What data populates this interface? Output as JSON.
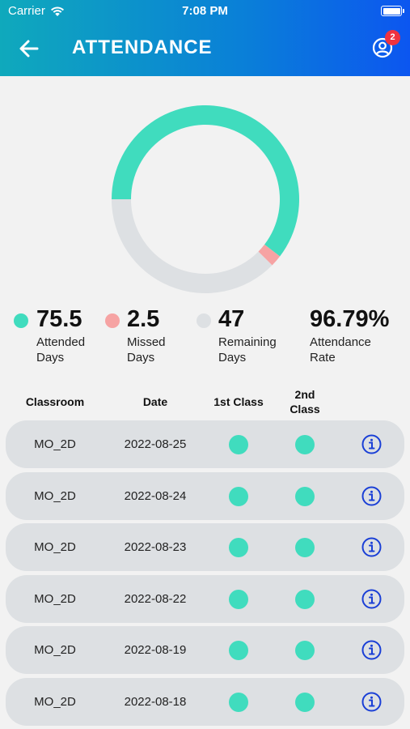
{
  "status_bar": {
    "carrier": "Carrier",
    "time": "7:08 PM"
  },
  "header": {
    "title": "ATTENDANCE",
    "notification_count": "2",
    "color_start": "#0fa9bc",
    "color_end": "#0c56f0"
  },
  "chart_data": {
    "type": "pie",
    "style": "donut",
    "categories": [
      "Attended Days",
      "Missed Days",
      "Remaining Days"
    ],
    "values": [
      75.5,
      2.5,
      47
    ],
    "colors": [
      "#40dcbe",
      "#f6a3a3",
      "#dde0e3"
    ]
  },
  "stats": [
    {
      "value": "75.5",
      "label_line1": "Attended",
      "label_line2": "Days",
      "color": "#40dcbe"
    },
    {
      "value": "2.5",
      "label_line1": "Missed",
      "label_line2": "Days",
      "color": "#f6a3a3"
    },
    {
      "value": "47",
      "label_line1": "Remaining",
      "label_line2": "Days",
      "color": "#dde0e3"
    },
    {
      "value": "96.79%",
      "label_line1": "Attendance",
      "label_line2": "Rate"
    }
  ],
  "table": {
    "headers": {
      "classroom": "Classroom",
      "date": "Date",
      "first_class": "1st Class",
      "second_class_line1": "2nd",
      "second_class_line2": "Class"
    },
    "present_color": "#40dcbe",
    "rows": [
      {
        "classroom": "MO_2D",
        "date": "2022-08-25",
        "first_class": "present",
        "second_class": "present"
      },
      {
        "classroom": "MO_2D",
        "date": "2022-08-24",
        "first_class": "present",
        "second_class": "present"
      },
      {
        "classroom": "MO_2D",
        "date": "2022-08-23",
        "first_class": "present",
        "second_class": "present"
      },
      {
        "classroom": "MO_2D",
        "date": "2022-08-22",
        "first_class": "present",
        "second_class": "present"
      },
      {
        "classroom": "MO_2D",
        "date": "2022-08-19",
        "first_class": "present",
        "second_class": "present"
      },
      {
        "classroom": "MO_2D",
        "date": "2022-08-18",
        "first_class": "present",
        "second_class": "present"
      }
    ]
  }
}
